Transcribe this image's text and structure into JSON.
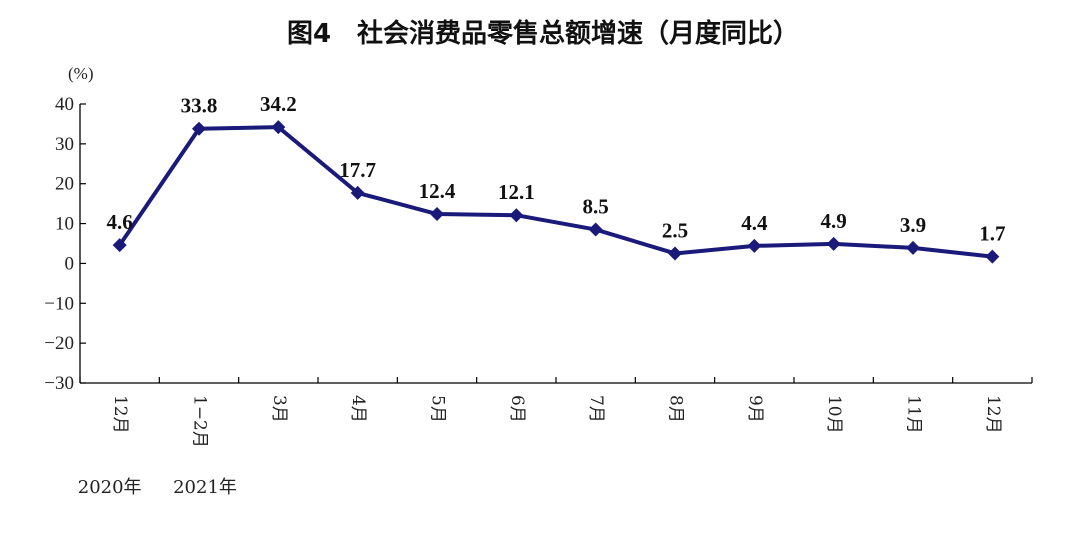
{
  "chart_data": {
    "type": "line",
    "title": "图4　社会消费品零售总额增速（月度同比）",
    "unit": "(%)",
    "categories": [
      "12月",
      "1−2月",
      "3月",
      "4月",
      "5月",
      "6月",
      "7月",
      "8月",
      "9月",
      "10月",
      "11月",
      "12月"
    ],
    "year_labels": [
      "2020年",
      "2021年"
    ],
    "values": [
      4.6,
      33.8,
      34.2,
      17.7,
      12.4,
      12.1,
      8.5,
      2.5,
      4.4,
      4.9,
      3.9,
      1.7
    ],
    "data_labels": [
      "4.6",
      "33.8",
      "34.2",
      "17.7",
      "12.4",
      "12.1",
      "8.5",
      "2.5",
      "4.4",
      "4.9",
      "3.9",
      "1.7"
    ],
    "ylim": [
      -30,
      40
    ],
    "yticks": [
      40,
      30,
      20,
      10,
      0,
      -10,
      -20,
      -30
    ],
    "ytick_labels": [
      "40",
      "30",
      "20",
      "10",
      "0",
      "−10",
      "−20",
      "−30"
    ],
    "grid": false,
    "legend": "none",
    "line_color": "#1a1a7a"
  }
}
